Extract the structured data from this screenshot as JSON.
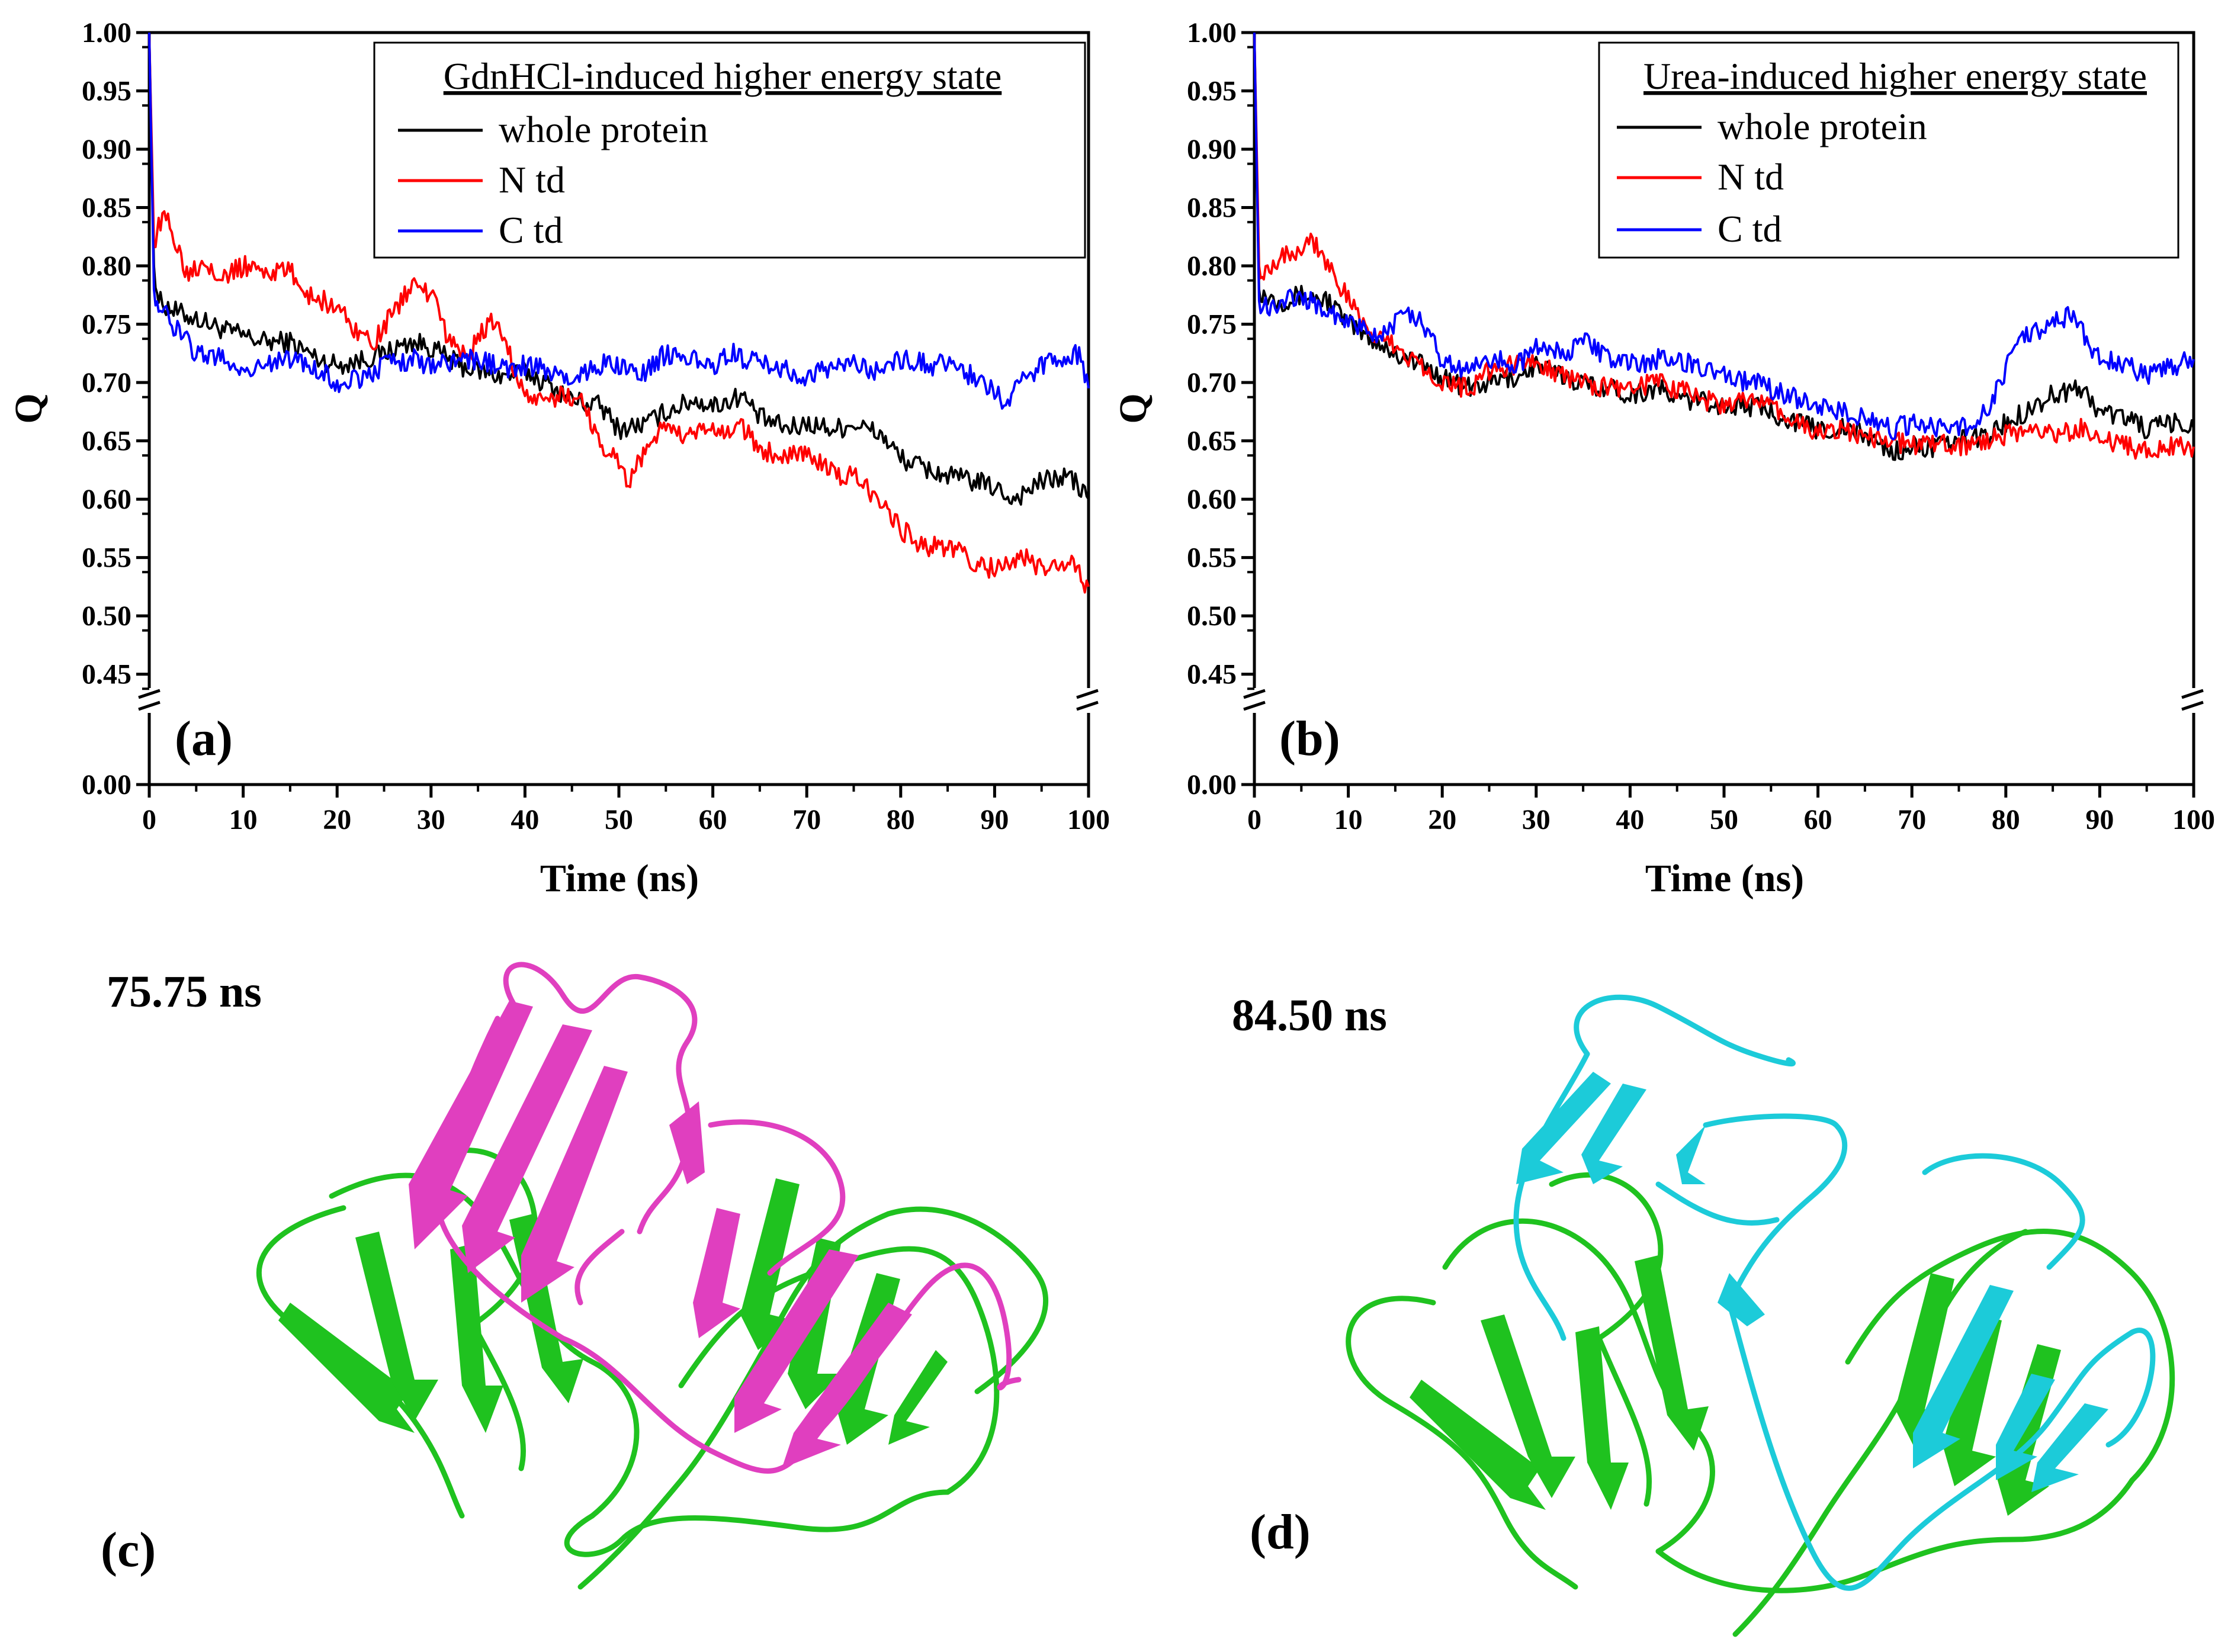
{
  "chart_data": [
    {
      "panel_label": "(a)",
      "type": "line",
      "xlabel": "Time (ns)",
      "ylabel": "Q",
      "xlim": [
        0,
        100
      ],
      "ylim_upper": [
        0.43,
        1.0
      ],
      "ylim_lower": [
        0.0,
        0.0
      ],
      "broken_y_axis": true,
      "x_ticks": [
        "0",
        "10",
        "20",
        "30",
        "40",
        "50",
        "60",
        "70",
        "80",
        "90",
        "100"
      ],
      "y_ticks_upper": [
        "0.45",
        "0.50",
        "0.55",
        "0.60",
        "0.65",
        "0.70",
        "0.75",
        "0.80",
        "0.85",
        "0.90",
        "0.95",
        "1.00"
      ],
      "y_ticks_lower": [
        "0.00"
      ],
      "legend_title": "GdnHCl-induced higher energy state",
      "legend_position": "top-right",
      "series": [
        {
          "name": "whole protein",
          "color": "#000000",
          "x": [
            0,
            0.5,
            1,
            3,
            5,
            8,
            10,
            12,
            15,
            18,
            20,
            23,
            25,
            28,
            30,
            33,
            35,
            38,
            40,
            43,
            45,
            48,
            50,
            53,
            55,
            58,
            60,
            62,
            63,
            65,
            68,
            70,
            73,
            75,
            78,
            80,
            83,
            85,
            88,
            90,
            92,
            95,
            98,
            100
          ],
          "y": [
            1.0,
            0.8,
            0.77,
            0.76,
            0.755,
            0.745,
            0.74,
            0.735,
            0.735,
            0.72,
            0.715,
            0.72,
            0.725,
            0.735,
            0.73,
            0.715,
            0.71,
            0.705,
            0.71,
            0.695,
            0.685,
            0.68,
            0.66,
            0.665,
            0.675,
            0.685,
            0.68,
            0.685,
            0.69,
            0.67,
            0.66,
            0.665,
            0.66,
            0.665,
            0.655,
            0.635,
            0.625,
            0.62,
            0.615,
            0.61,
            0.6,
            0.615,
            0.62,
            0.6
          ]
        },
        {
          "name": "N td",
          "color": "#ff0000",
          "x": [
            0,
            0.5,
            1,
            2,
            4,
            6,
            8,
            10,
            13,
            15,
            17,
            20,
            22,
            24,
            26,
            28,
            30,
            32,
            34,
            35,
            37,
            38,
            40,
            42,
            44,
            46,
            48,
            50,
            51,
            53,
            55,
            57,
            59,
            61,
            63,
            65,
            68,
            70,
            73,
            75,
            77,
            78,
            80,
            82,
            85,
            88,
            90,
            93,
            95,
            98,
            100
          ],
          "y": [
            1.0,
            0.82,
            0.835,
            0.84,
            0.795,
            0.805,
            0.79,
            0.8,
            0.795,
            0.795,
            0.775,
            0.765,
            0.745,
            0.735,
            0.76,
            0.785,
            0.775,
            0.735,
            0.72,
            0.74,
            0.755,
            0.73,
            0.69,
            0.68,
            0.69,
            0.685,
            0.65,
            0.63,
            0.615,
            0.645,
            0.665,
            0.65,
            0.66,
            0.655,
            0.665,
            0.64,
            0.64,
            0.64,
            0.62,
            0.62,
            0.605,
            0.6,
            0.575,
            0.56,
            0.56,
            0.545,
            0.54,
            0.55,
            0.54,
            0.545,
            0.525
          ]
        },
        {
          "name": "C td",
          "color": "#0000ff",
          "x": [
            0,
            0.5,
            1,
            3,
            5,
            8,
            10,
            12,
            15,
            18,
            20,
            23,
            25,
            28,
            30,
            33,
            35,
            38,
            40,
            43,
            45,
            48,
            50,
            53,
            55,
            57,
            60,
            62,
            65,
            68,
            70,
            73,
            75,
            78,
            80,
            83,
            85,
            88,
            90,
            91,
            93,
            95,
            97,
            99,
            100
          ],
          "y": [
            1.0,
            0.78,
            0.765,
            0.745,
            0.725,
            0.72,
            0.71,
            0.715,
            0.72,
            0.71,
            0.7,
            0.705,
            0.715,
            0.72,
            0.715,
            0.72,
            0.72,
            0.71,
            0.715,
            0.71,
            0.7,
            0.715,
            0.715,
            0.71,
            0.725,
            0.72,
            0.715,
            0.725,
            0.715,
            0.71,
            0.705,
            0.715,
            0.715,
            0.71,
            0.72,
            0.715,
            0.715,
            0.705,
            0.695,
            0.68,
            0.7,
            0.715,
            0.72,
            0.725,
            0.695
          ]
        }
      ]
    },
    {
      "panel_label": "(b)",
      "type": "line",
      "xlabel": "Time (ns)",
      "ylabel": "Q",
      "xlim": [
        0,
        100
      ],
      "ylim_upper": [
        0.43,
        1.0
      ],
      "ylim_lower": [
        0.0,
        0.0
      ],
      "broken_y_axis": true,
      "x_ticks": [
        "0",
        "10",
        "20",
        "30",
        "40",
        "50",
        "60",
        "70",
        "80",
        "90",
        "100"
      ],
      "y_ticks_upper": [
        "0.45",
        "0.50",
        "0.55",
        "0.60",
        "0.65",
        "0.70",
        "0.75",
        "0.80",
        "0.85",
        "0.90",
        "0.95",
        "1.00"
      ],
      "y_ticks_lower": [
        "0.00"
      ],
      "legend_title": "Urea-induced higher energy state",
      "legend_position": "top-right",
      "series": [
        {
          "name": "whole protein",
          "color": "#000000",
          "x": [
            0,
            0.5,
            1,
            3,
            5,
            8,
            10,
            13,
            15,
            18,
            20,
            23,
            25,
            28,
            30,
            33,
            35,
            38,
            40,
            43,
            45,
            48,
            50,
            53,
            55,
            58,
            60,
            63,
            65,
            68,
            70,
            73,
            75,
            78,
            80,
            83,
            85,
            88,
            90,
            93,
            95,
            98,
            100
          ],
          "y": [
            1.0,
            0.78,
            0.775,
            0.77,
            0.775,
            0.77,
            0.75,
            0.735,
            0.725,
            0.715,
            0.705,
            0.695,
            0.7,
            0.705,
            0.715,
            0.705,
            0.7,
            0.695,
            0.69,
            0.695,
            0.685,
            0.685,
            0.68,
            0.68,
            0.675,
            0.665,
            0.66,
            0.66,
            0.655,
            0.64,
            0.645,
            0.645,
            0.65,
            0.655,
            0.665,
            0.68,
            0.69,
            0.695,
            0.675,
            0.67,
            0.66,
            0.665,
            0.66
          ]
        },
        {
          "name": "N td",
          "color": "#ff0000",
          "x": [
            0,
            0.5,
            1,
            3,
            5,
            6,
            8,
            10,
            12,
            15,
            18,
            20,
            23,
            25,
            28,
            30,
            33,
            35,
            38,
            40,
            43,
            45,
            48,
            50,
            53,
            55,
            58,
            60,
            63,
            65,
            68,
            70,
            73,
            75,
            78,
            80,
            83,
            85,
            88,
            90,
            93,
            95,
            98,
            100
          ],
          "y": [
            1.0,
            0.8,
            0.795,
            0.81,
            0.815,
            0.825,
            0.8,
            0.77,
            0.745,
            0.73,
            0.715,
            0.7,
            0.695,
            0.71,
            0.715,
            0.72,
            0.705,
            0.7,
            0.695,
            0.695,
            0.7,
            0.695,
            0.685,
            0.68,
            0.685,
            0.68,
            0.665,
            0.655,
            0.66,
            0.655,
            0.65,
            0.645,
            0.65,
            0.645,
            0.65,
            0.655,
            0.66,
            0.655,
            0.66,
            0.65,
            0.645,
            0.64,
            0.645,
            0.645
          ]
        },
        {
          "name": "C td",
          "color": "#0000ff",
          "x": [
            0,
            0.5,
            1,
            3,
            5,
            8,
            10,
            13,
            15,
            17,
            20,
            23,
            25,
            28,
            30,
            33,
            35,
            38,
            40,
            43,
            45,
            48,
            50,
            53,
            55,
            58,
            60,
            63,
            65,
            68,
            70,
            73,
            75,
            78,
            80,
            81,
            83,
            85,
            87,
            88,
            90,
            93,
            95,
            98,
            100
          ],
          "y": [
            1.0,
            0.77,
            0.765,
            0.77,
            0.775,
            0.76,
            0.75,
            0.74,
            0.75,
            0.76,
            0.72,
            0.71,
            0.72,
            0.715,
            0.73,
            0.725,
            0.735,
            0.72,
            0.715,
            0.72,
            0.72,
            0.71,
            0.705,
            0.7,
            0.695,
            0.685,
            0.68,
            0.675,
            0.67,
            0.66,
            0.665,
            0.66,
            0.66,
            0.675,
            0.71,
            0.74,
            0.745,
            0.75,
            0.76,
            0.745,
            0.72,
            0.715,
            0.705,
            0.715,
            0.72
          ]
        }
      ]
    }
  ],
  "structures": {
    "c": {
      "panel_label": "(c)",
      "time_label": "75.75 ns",
      "reference_color": "#1fc21f",
      "structure_color": "#e03fbf"
    },
    "d": {
      "panel_label": "(d)",
      "time_label": "84.50 ns",
      "reference_color": "#1fc21f",
      "structure_color": "#1ccbd9"
    }
  }
}
